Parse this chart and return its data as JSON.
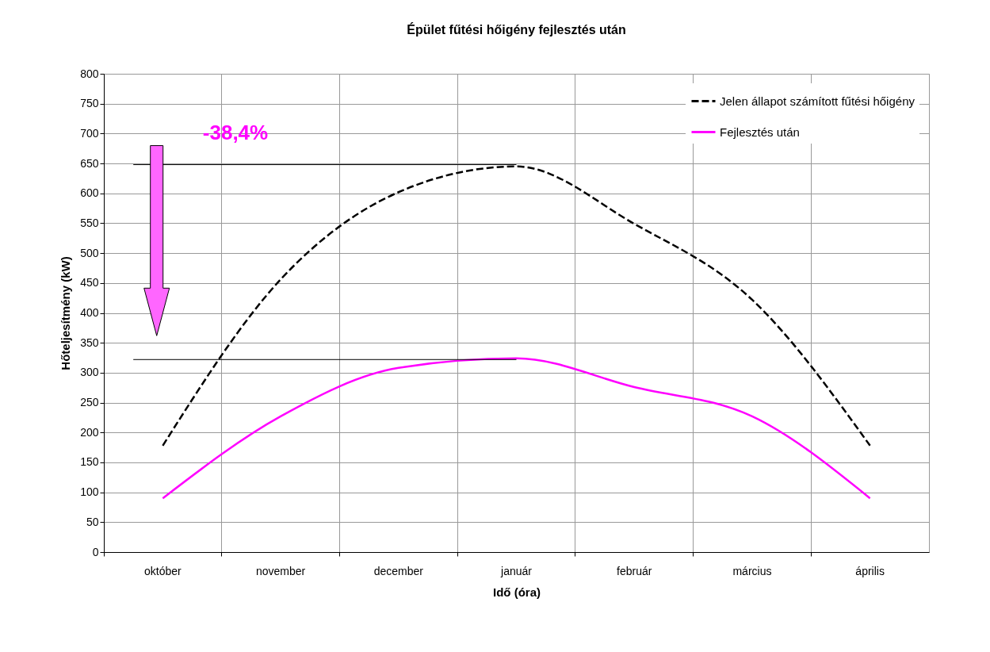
{
  "chart_data": {
    "type": "line",
    "title": "Épület fűtési hőigény fejlesztés után",
    "xlabel": "Idő (óra)",
    "ylabel": "Hőteljesítmény (kW)",
    "categories": [
      "október",
      "november",
      "december",
      "január",
      "február",
      "március",
      "április"
    ],
    "series": [
      {
        "name": "Jelen állapot számított fűtési hőigény",
        "color": "#000000",
        "line_style": "dashed",
        "values": [
          178,
          456,
          602,
          645,
          549,
          422,
          178
        ]
      },
      {
        "name": "Fejlesztés után",
        "color": "#ff00ff",
        "line_style": "solid",
        "values": [
          90,
          227,
          308,
          324,
          276,
          227,
          90
        ]
      }
    ],
    "ylim": [
      0,
      800
    ],
    "yticks": [
      0,
      50,
      100,
      150,
      200,
      250,
      300,
      350,
      400,
      450,
      500,
      550,
      600,
      650,
      700,
      750,
      800
    ],
    "grid": true,
    "legend": "top right",
    "ref_lines": [
      {
        "axis": "y",
        "value": 648,
        "color": "#000000"
      },
      {
        "axis": "y",
        "value": 322,
        "color": "#000000"
      }
    ],
    "annotations": [
      "-38,4%"
    ]
  }
}
